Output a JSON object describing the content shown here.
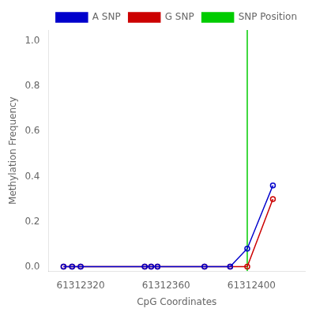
{
  "chart_data": {
    "type": "line",
    "xlabel": "CpG Coordinates",
    "ylabel": "Methylation Frequency",
    "x": [
      61312312,
      61312316,
      61312320,
      61312350,
      61312353,
      61312356,
      61312378,
      61312390,
      61312398,
      61312410
    ],
    "series": [
      {
        "name": "A SNP",
        "color": "#0000CC",
        "marker": "circle",
        "values": [
          0.0,
          0.0,
          0.0,
          0.0,
          0.0,
          0.0,
          0.0,
          0.0,
          0.08,
          0.36
        ]
      },
      {
        "name": "G SNP",
        "color": "#CC0000",
        "marker": "circle",
        "values": [
          0.0,
          0.0,
          0.0,
          0.0,
          0.0,
          0.0,
          0.0,
          0.0,
          0.0,
          0.3
        ]
      },
      {
        "name": "SNP Position",
        "type": "vline",
        "color": "#00CC00",
        "x": 61312398
      }
    ],
    "xlim": [
      61312305,
      61312425
    ],
    "xticks": [
      61312320,
      61312360,
      61312400
    ],
    "ylim": [
      -0.02,
      1.05
    ],
    "yticks": [
      {
        "value": 0.0,
        "label": "0.0"
      },
      0.2,
      0.4,
      0.6,
      0.8,
      {
        "value": 1.0,
        "label": "1.0"
      }
    ],
    "grid": false,
    "legend": "upper right"
  }
}
